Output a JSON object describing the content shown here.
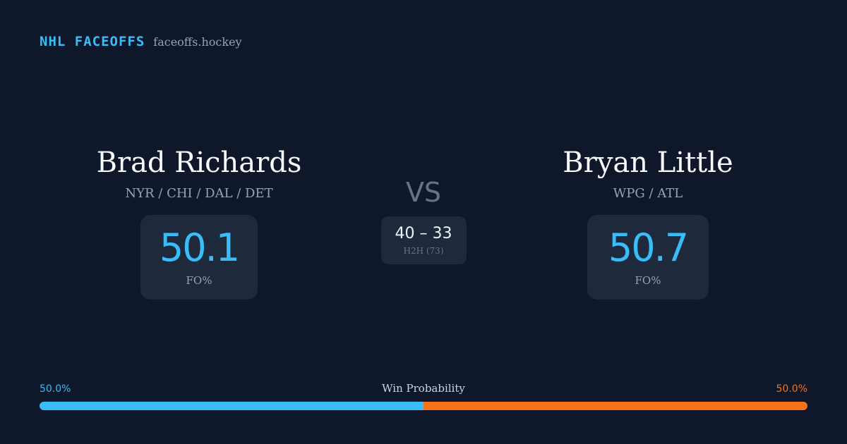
{
  "brand": {
    "name": "NHL FACEOFFS",
    "site": "faceoffs.hockey"
  },
  "players": {
    "left": {
      "name": "Brad Richards",
      "teams": "NYR / CHI / DAL / DET",
      "stat_value": "50.1",
      "stat_label": "FO%"
    },
    "right": {
      "name": "Bryan Little",
      "teams": "WPG / ATL",
      "stat_value": "50.7",
      "stat_label": "FO%"
    }
  },
  "versus": {
    "label": "VS",
    "h2h_score": "40 – 33",
    "h2h_label": "H2H (73)"
  },
  "win_probability": {
    "label": "Win Probability",
    "left_text": "50.0%",
    "right_text": "50.0%",
    "left_fraction": 0.5,
    "left_color": "#38bdf8",
    "right_color": "#f97316"
  }
}
